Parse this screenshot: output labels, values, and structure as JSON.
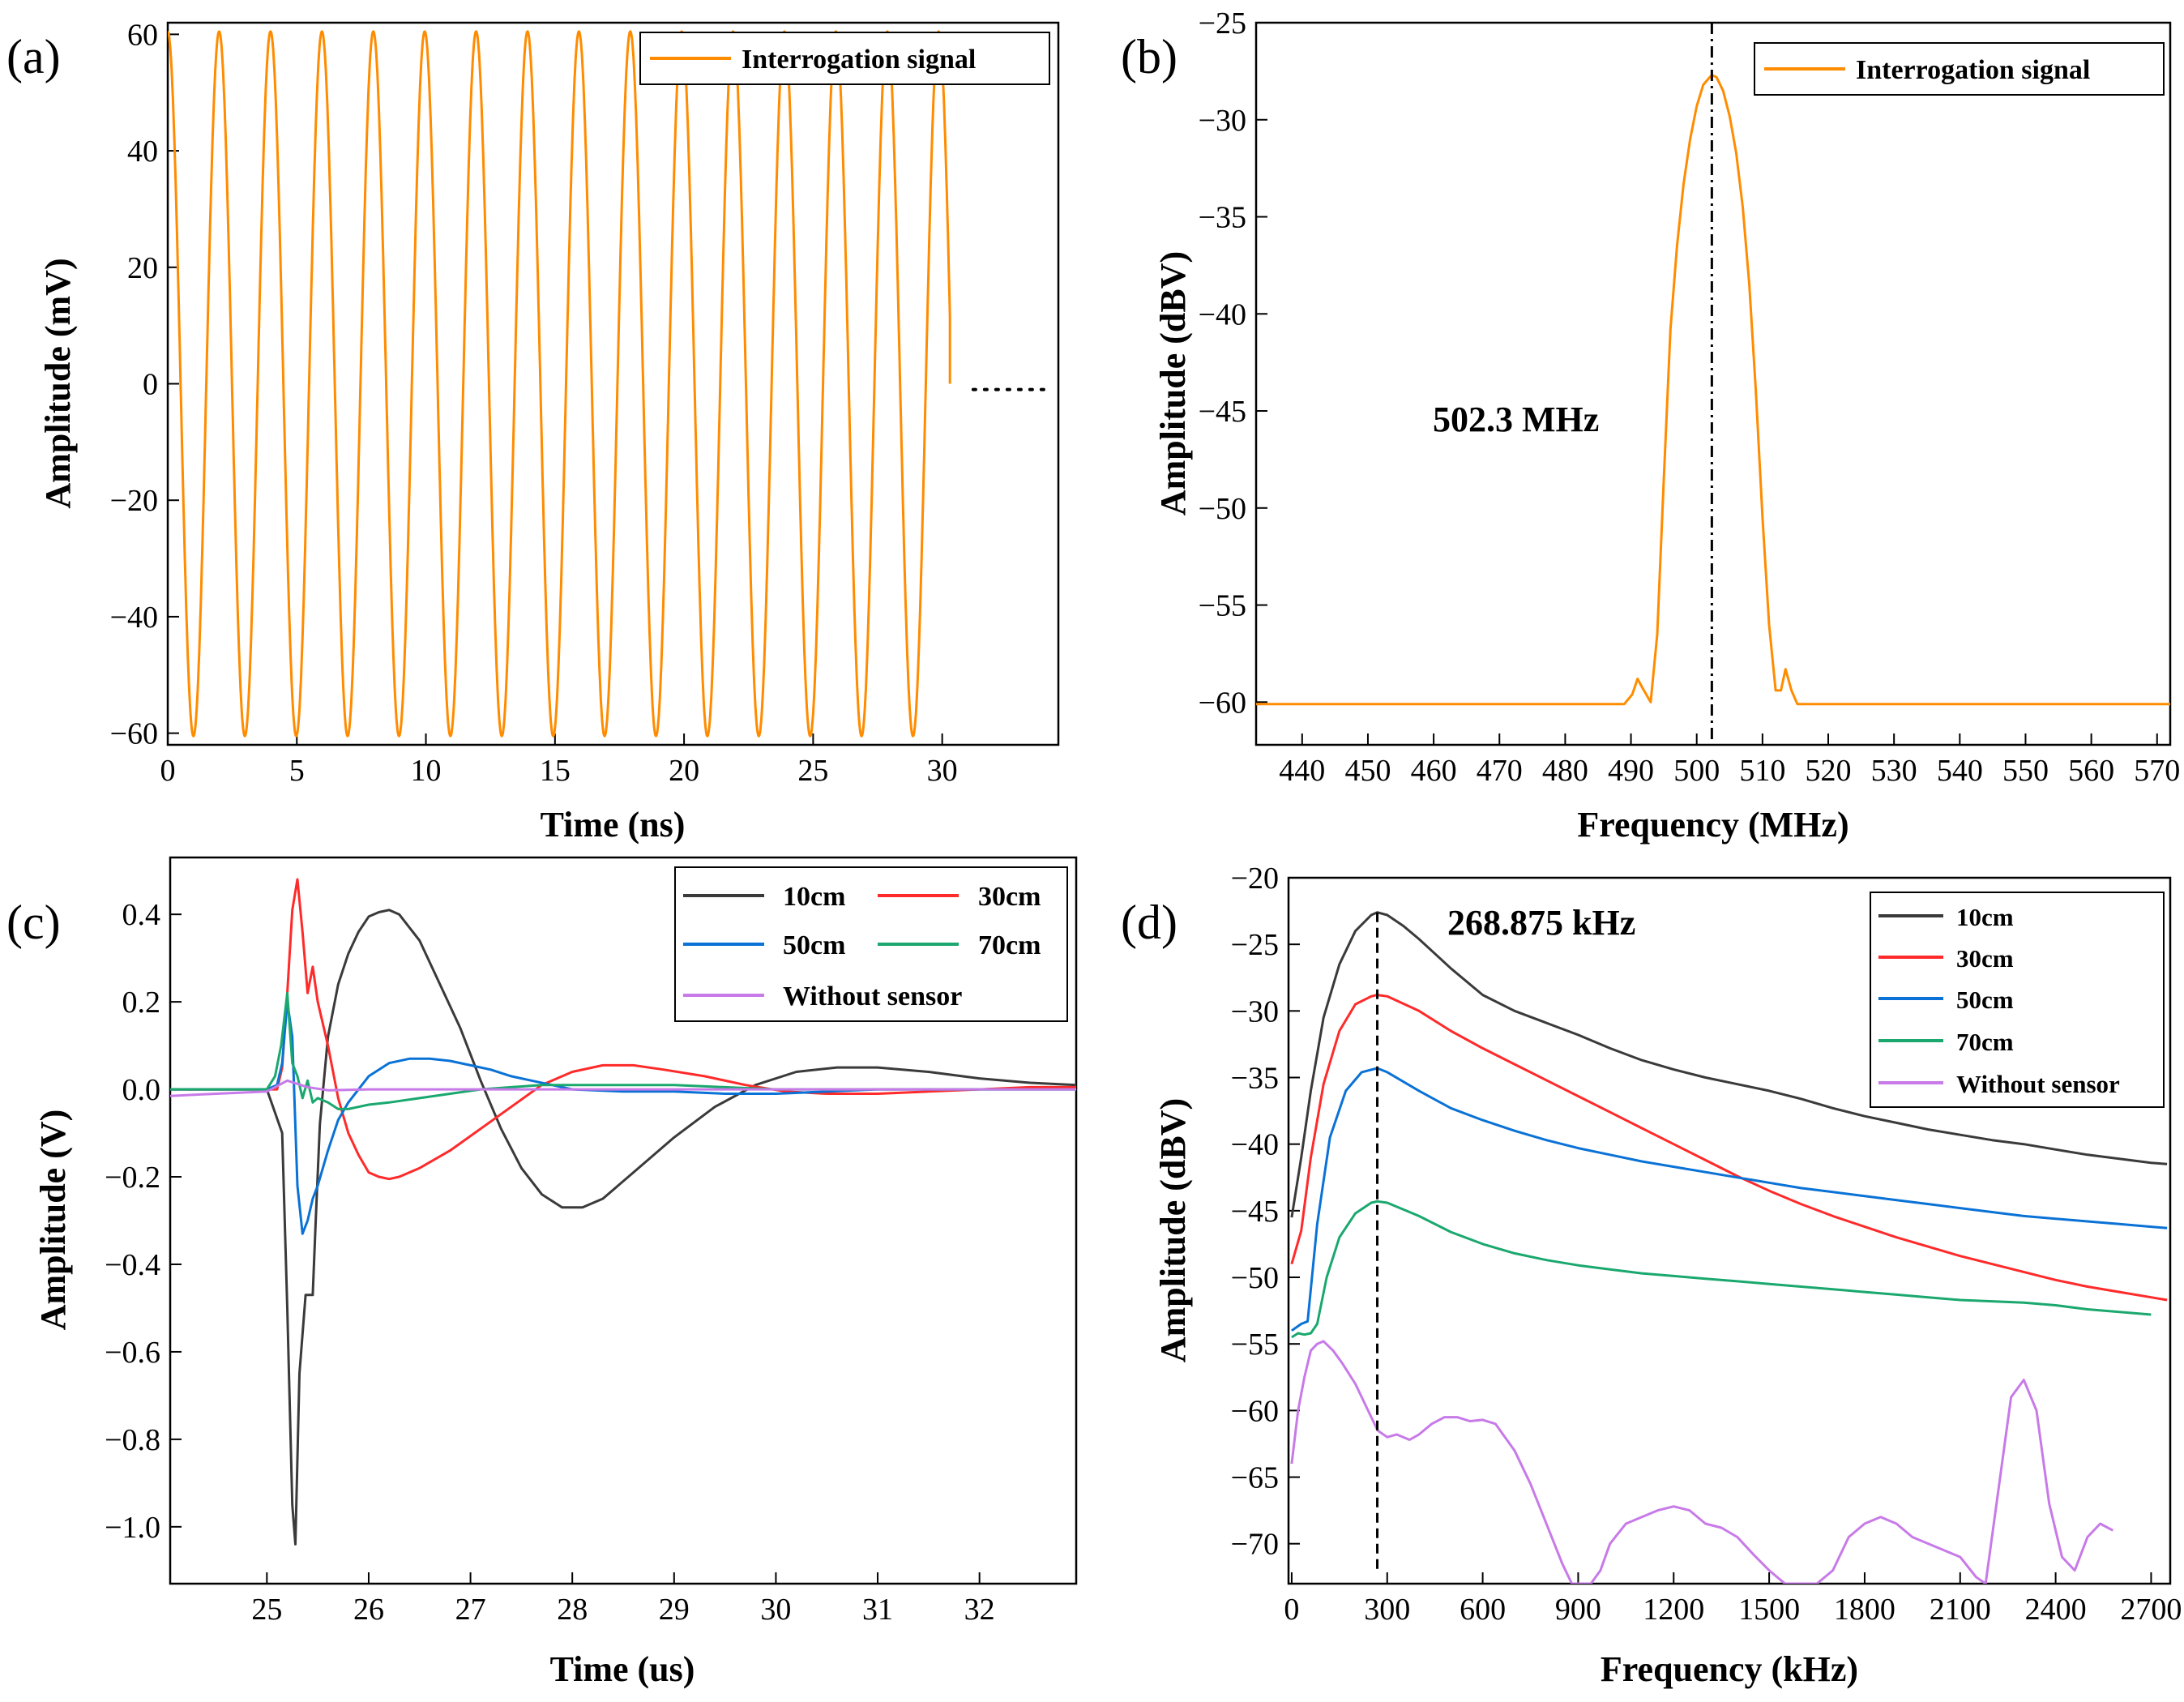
{
  "figure": {
    "panels": [
      {
        "id": "a",
        "label": "(a)"
      },
      {
        "id": "b",
        "label": "(b)"
      },
      {
        "id": "c",
        "label": "(c)"
      },
      {
        "id": "d",
        "label": "(d)"
      }
    ]
  },
  "colors": {
    "interrogation": "#ff8c00",
    "10cm": "#3a3a3a",
    "30cm": "#ff2a2a",
    "50cm": "#0a72d6",
    "70cm": "#1aa86e",
    "without_sensor": "#c77ae8",
    "axis": "#000000"
  },
  "chart_data": [
    {
      "panel": "a",
      "type": "line",
      "xlabel": "Time (ns)",
      "ylabel": "Amplitude (mV)",
      "xlim": [
        0,
        34.5
      ],
      "ylim": [
        -62,
        62
      ],
      "xticks": [
        0,
        5,
        10,
        15,
        20,
        25,
        30
      ],
      "yticks": [
        -60,
        -40,
        -20,
        0,
        20,
        40,
        60
      ],
      "legend": [
        {
          "name": "Interrogation signal",
          "color_key": "interrogation"
        }
      ],
      "legend_position": "top-right",
      "series": [
        {
          "name": "Interrogation signal",
          "kind": "sine",
          "amplitude": 60.5,
          "frequency_GHz": 0.5023,
          "start_ns": 0,
          "end_ns": 30.3,
          "trailing": "dotted line at 0 after 30.3 ns"
        }
      ]
    },
    {
      "panel": "b",
      "type": "line",
      "xlabel": "Frequency (MHz)",
      "ylabel": "Amplitude (dBV)",
      "xlim": [
        433,
        572
      ],
      "ylim": [
        -62.2,
        -25
      ],
      "xticks": [
        440,
        450,
        460,
        470,
        480,
        490,
        500,
        510,
        520,
        530,
        540,
        550,
        560,
        570
      ],
      "yticks": [
        -60,
        -55,
        -50,
        -45,
        -40,
        -35,
        -30,
        -25
      ],
      "legend": [
        {
          "name": "Interrogation signal",
          "color_key": "interrogation"
        }
      ],
      "legend_position": "top-right",
      "annotation": {
        "text": "502.3 MHz",
        "vline_x": 502.3
      },
      "series": [
        {
          "name": "Interrogation signal",
          "x": [
            433,
            489,
            490.2,
            491,
            491.8,
            493,
            494,
            495,
            496,
            497,
            498,
            499,
            500,
            501,
            502,
            502.3,
            503,
            504,
            505,
            506,
            507,
            508,
            509,
            510,
            511,
            512,
            512.8,
            513.5,
            514.4,
            515.3,
            516.5,
            572
          ],
          "y": [
            -60.1,
            -60.1,
            -59.6,
            -58.8,
            -59.3,
            -60,
            -56.5,
            -48.5,
            -40.8,
            -36.5,
            -33.3,
            -31,
            -29.3,
            -28.2,
            -27.8,
            -27.7,
            -27.8,
            -28.5,
            -29.8,
            -31.7,
            -34.5,
            -38.5,
            -44,
            -50.5,
            -56,
            -59.4,
            -59.4,
            -58.3,
            -59.4,
            -60.1,
            -60.1,
            -60.1
          ]
        }
      ]
    },
    {
      "panel": "c",
      "type": "line",
      "xlabel": "Time (us)",
      "ylabel": "Amplitude (V)",
      "xlim": [
        24.05,
        32.95
      ],
      "ylim": [
        -1.13,
        0.53
      ],
      "xticks": [
        25,
        26,
        27,
        28,
        29,
        30,
        31,
        32
      ],
      "yticks": [
        -1.0,
        -0.8,
        -0.6,
        -0.4,
        -0.2,
        0.0,
        0.2,
        0.4
      ],
      "ytick_labels": [
        "−1.0",
        "−0.8",
        "−0.6",
        "−0.4",
        "−0.2",
        "0.0",
        "0.2",
        "0.4"
      ],
      "legend": [
        {
          "name": "10cm",
          "color_key": "10cm"
        },
        {
          "name": "30cm",
          "color_key": "30cm"
        },
        {
          "name": "50cm",
          "color_key": "50cm"
        },
        {
          "name": "70cm",
          "color_key": "70cm"
        },
        {
          "name": "Without sensor",
          "color_key": "without_sensor"
        }
      ],
      "legend_position": "top-right",
      "series": [
        {
          "name": "10cm",
          "x": [
            24.05,
            25.0,
            25.15,
            25.2,
            25.25,
            25.28,
            25.32,
            25.38,
            25.45,
            25.48,
            25.52,
            25.6,
            25.7,
            25.8,
            25.9,
            26.0,
            26.1,
            26.2,
            26.3,
            26.5,
            26.7,
            26.9,
            27.1,
            27.3,
            27.5,
            27.7,
            27.9,
            28.1,
            28.3,
            28.6,
            29.0,
            29.4,
            29.8,
            30.2,
            30.6,
            31.0,
            31.5,
            32.0,
            32.5,
            32.95
          ],
          "y": [
            0.0,
            0.0,
            -0.1,
            -0.5,
            -0.95,
            -1.04,
            -0.65,
            -0.47,
            -0.47,
            -0.3,
            -0.08,
            0.12,
            0.24,
            0.31,
            0.36,
            0.395,
            0.405,
            0.41,
            0.4,
            0.34,
            0.24,
            0.14,
            0.02,
            -0.09,
            -0.18,
            -0.24,
            -0.27,
            -0.27,
            -0.25,
            -0.19,
            -0.11,
            -0.04,
            0.01,
            0.04,
            0.05,
            0.05,
            0.04,
            0.025,
            0.015,
            0.01
          ]
        },
        {
          "name": "30cm",
          "x": [
            24.05,
            25.1,
            25.15,
            25.2,
            25.25,
            25.3,
            25.35,
            25.4,
            25.45,
            25.5,
            25.55,
            25.6,
            25.7,
            25.8,
            25.9,
            26.0,
            26.1,
            26.2,
            26.3,
            26.5,
            26.8,
            27.1,
            27.4,
            27.7,
            28.0,
            28.3,
            28.6,
            28.9,
            29.3,
            29.7,
            30.1,
            30.5,
            31.0,
            31.5,
            32.0,
            32.5,
            32.95
          ],
          "y": [
            0.0,
            0.0,
            0.05,
            0.22,
            0.41,
            0.48,
            0.36,
            0.22,
            0.28,
            0.2,
            0.15,
            0.1,
            -0.02,
            -0.1,
            -0.15,
            -0.19,
            -0.2,
            -0.205,
            -0.2,
            -0.18,
            -0.14,
            -0.09,
            -0.04,
            0.01,
            0.04,
            0.055,
            0.055,
            0.045,
            0.03,
            0.01,
            -0.005,
            -0.01,
            -0.01,
            -0.005,
            0.0,
            0.005,
            0.005
          ]
        },
        {
          "name": "50cm",
          "x": [
            24.05,
            25.0,
            25.1,
            25.15,
            25.2,
            25.25,
            25.3,
            25.35,
            25.4,
            25.45,
            25.5,
            25.6,
            25.7,
            25.8,
            25.9,
            26.0,
            26.2,
            26.4,
            26.6,
            26.8,
            27.0,
            27.2,
            27.4,
            27.6,
            27.8,
            28.0,
            28.5,
            29.0,
            29.5,
            30.0,
            30.5,
            31.0,
            32.0,
            32.95
          ],
          "y": [
            0.0,
            0.0,
            0.01,
            0.06,
            0.2,
            0.12,
            -0.22,
            -0.33,
            -0.3,
            -0.25,
            -0.22,
            -0.14,
            -0.07,
            -0.03,
            0.0,
            0.03,
            0.06,
            0.07,
            0.07,
            0.065,
            0.055,
            0.045,
            0.03,
            0.02,
            0.01,
            0.0,
            -0.005,
            -0.005,
            -0.01,
            -0.01,
            -0.005,
            0.0,
            0.0,
            0.0
          ]
        },
        {
          "name": "70cm",
          "x": [
            24.05,
            25.0,
            25.08,
            25.14,
            25.2,
            25.25,
            25.3,
            25.35,
            25.4,
            25.45,
            25.5,
            25.6,
            25.7,
            25.8,
            25.9,
            26.0,
            26.2,
            26.5,
            26.8,
            27.1,
            27.4,
            27.7,
            28.0,
            28.5,
            29.0,
            29.5,
            30.0,
            31.0,
            32.0,
            32.95
          ],
          "y": [
            0.0,
            0.0,
            0.03,
            0.1,
            0.22,
            0.06,
            0.03,
            -0.02,
            0.02,
            -0.03,
            -0.02,
            -0.03,
            -0.045,
            -0.045,
            -0.04,
            -0.035,
            -0.03,
            -0.02,
            -0.01,
            0.0,
            0.005,
            0.01,
            0.01,
            0.01,
            0.01,
            0.005,
            0.0,
            0.0,
            0.0,
            0.0
          ]
        },
        {
          "name": "Without sensor",
          "x": [
            24.05,
            24.5,
            25.0,
            25.2,
            25.4,
            25.6,
            26.0,
            27.0,
            28.0,
            29.0,
            30.0,
            31.0,
            32.0,
            32.95
          ],
          "y": [
            -0.015,
            -0.01,
            -0.005,
            0.02,
            0.005,
            -0.002,
            0.0,
            0.0,
            0.0,
            0.0,
            0.0,
            0.0,
            0.0,
            0.0
          ]
        }
      ]
    },
    {
      "panel": "d",
      "type": "line",
      "xlabel": "Frequency (kHz)",
      "ylabel": "Amplitude (dBV)",
      "xlim": [
        -10,
        2760
      ],
      "ylim": [
        -73,
        -20
      ],
      "xticks": [
        0,
        300,
        600,
        900,
        1200,
        1500,
        1800,
        2100,
        2400,
        2700
      ],
      "yticks": [
        -70,
        -65,
        -60,
        -55,
        -50,
        -45,
        -40,
        -35,
        -30,
        -25,
        -20
      ],
      "legend": [
        {
          "name": "10cm",
          "color_key": "10cm"
        },
        {
          "name": "30cm",
          "color_key": "30cm"
        },
        {
          "name": "50cm",
          "color_key": "50cm"
        },
        {
          "name": "70cm",
          "color_key": "70cm"
        },
        {
          "name": "Without sensor",
          "color_key": "without_sensor"
        }
      ],
      "legend_position": "top-right",
      "annotation": {
        "text": "268.875 kHz",
        "vline_x": 268.875
      },
      "series": [
        {
          "name": "10cm",
          "x": [
            0,
            30,
            60,
            100,
            150,
            200,
            250,
            268.875,
            300,
            350,
            400,
            500,
            600,
            700,
            800,
            900,
            1000,
            1100,
            1200,
            1300,
            1400,
            1500,
            1600,
            1700,
            1800,
            1900,
            2000,
            2100,
            2200,
            2300,
            2400,
            2500,
            2600,
            2700,
            2750
          ],
          "y": [
            -45.5,
            -41,
            -36,
            -30.5,
            -26.5,
            -24,
            -22.8,
            -22.6,
            -22.8,
            -23.6,
            -24.6,
            -26.8,
            -28.8,
            -30.0,
            -30.9,
            -31.8,
            -32.8,
            -33.7,
            -34.4,
            -35.0,
            -35.5,
            -36.0,
            -36.6,
            -37.3,
            -37.9,
            -38.4,
            -38.9,
            -39.3,
            -39.7,
            -40.0,
            -40.4,
            -40.8,
            -41.1,
            -41.4,
            -41.5
          ]
        },
        {
          "name": "30cm",
          "x": [
            0,
            30,
            60,
            100,
            150,
            200,
            250,
            268.875,
            300,
            400,
            500,
            600,
            700,
            800,
            900,
            1000,
            1100,
            1200,
            1300,
            1400,
            1500,
            1600,
            1700,
            1800,
            1900,
            2000,
            2100,
            2200,
            2300,
            2400,
            2500,
            2600,
            2700,
            2750
          ],
          "y": [
            -49,
            -46.5,
            -41,
            -35.5,
            -31.5,
            -29.5,
            -28.9,
            -28.8,
            -28.9,
            -30.0,
            -31.5,
            -32.8,
            -34.0,
            -35.2,
            -36.4,
            -37.6,
            -38.8,
            -40.0,
            -41.2,
            -42.4,
            -43.5,
            -44.5,
            -45.4,
            -46.2,
            -47.0,
            -47.7,
            -48.4,
            -49.0,
            -49.6,
            -50.2,
            -50.7,
            -51.1,
            -51.5,
            -51.7
          ]
        },
        {
          "name": "50cm",
          "x": [
            0,
            30,
            50,
            80,
            120,
            170,
            220,
            268.875,
            300,
            400,
            500,
            600,
            700,
            800,
            900,
            1000,
            1100,
            1200,
            1300,
            1400,
            1500,
            1600,
            1700,
            1800,
            1900,
            2000,
            2100,
            2200,
            2300,
            2400,
            2500,
            2600,
            2700,
            2750
          ],
          "y": [
            -54,
            -53.5,
            -53.3,
            -46,
            -39.5,
            -36,
            -34.6,
            -34.3,
            -34.6,
            -36.0,
            -37.3,
            -38.2,
            -39.0,
            -39.7,
            -40.3,
            -40.8,
            -41.3,
            -41.7,
            -42.1,
            -42.5,
            -42.9,
            -43.3,
            -43.6,
            -43.9,
            -44.2,
            -44.5,
            -44.8,
            -45.1,
            -45.4,
            -45.6,
            -45.8,
            -46.0,
            -46.2,
            -46.3
          ]
        },
        {
          "name": "70cm",
          "x": [
            0,
            20,
            40,
            60,
            80,
            110,
            150,
            200,
            250,
            268.875,
            300,
            400,
            500,
            600,
            700,
            800,
            900,
            1000,
            1100,
            1200,
            1300,
            1400,
            1500,
            1600,
            1700,
            1800,
            1900,
            2000,
            2100,
            2200,
            2300,
            2400,
            2500,
            2600,
            2700
          ],
          "y": [
            -54.5,
            -54.2,
            -54.3,
            -54.2,
            -53.5,
            -50,
            -47,
            -45.2,
            -44.4,
            -44.3,
            -44.4,
            -45.4,
            -46.6,
            -47.5,
            -48.2,
            -48.7,
            -49.1,
            -49.4,
            -49.7,
            -49.9,
            -50.1,
            -50.3,
            -50.5,
            -50.7,
            -50.9,
            -51.1,
            -51.3,
            -51.5,
            -51.7,
            -51.8,
            -51.9,
            -52.1,
            -52.4,
            -52.6,
            -52.8
          ]
        },
        {
          "name": "Without sensor",
          "x": [
            0,
            20,
            40,
            60,
            80,
            100,
            130,
            160,
            200,
            240,
            270,
            300,
            330,
            370,
            400,
            440,
            480,
            520,
            560,
            600,
            640,
            700,
            750,
            800,
            850,
            880,
            900,
            940,
            970,
            1000,
            1050,
            1100,
            1150,
            1200,
            1250,
            1300,
            1350,
            1400,
            1450,
            1500,
            1550,
            1600,
            1650,
            1700,
            1750,
            1800,
            1850,
            1900,
            1950,
            2000,
            2050,
            2100,
            2150,
            2180,
            2220,
            2260,
            2300,
            2340,
            2380,
            2420,
            2460,
            2500,
            2540,
            2580
          ],
          "y": [
            -64,
            -60,
            -57.5,
            -55.5,
            -55,
            -54.8,
            -55.5,
            -56.5,
            -58,
            -60,
            -61.5,
            -62,
            -61.8,
            -62.2,
            -61.8,
            -61.0,
            -60.5,
            -60.5,
            -60.8,
            -60.7,
            -61.0,
            -63.0,
            -65.5,
            -68.5,
            -71.5,
            -73,
            -73,
            -73,
            -72.0,
            -70,
            -68.5,
            -68.0,
            -67.5,
            -67.2,
            -67.5,
            -68.5,
            -68.8,
            -69.5,
            -70.8,
            -72,
            -73,
            -73,
            -73,
            -72,
            -69.5,
            -68.5,
            -68.0,
            -68.5,
            -69.5,
            -70.0,
            -70.5,
            -71.0,
            -72.5,
            -73,
            -66,
            -59,
            -57.7,
            -60,
            -67,
            -71,
            -72,
            -69.5,
            -68.5,
            -69.0
          ]
        }
      ]
    }
  ]
}
